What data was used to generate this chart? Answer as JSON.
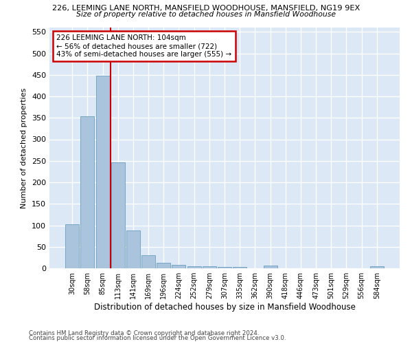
{
  "title1": "226, LEEMING LANE NORTH, MANSFIELD WOODHOUSE, MANSFIELD, NG19 9EX",
  "title2": "Size of property relative to detached houses in Mansfield Woodhouse",
  "xlabel": "Distribution of detached houses by size in Mansfield Woodhouse",
  "ylabel": "Number of detached properties",
  "footer1": "Contains HM Land Registry data © Crown copyright and database right 2024.",
  "footer2": "Contains public sector information licensed under the Open Government Licence v3.0.",
  "categories": [
    "30sqm",
    "58sqm",
    "85sqm",
    "113sqm",
    "141sqm",
    "169sqm",
    "196sqm",
    "224sqm",
    "252sqm",
    "279sqm",
    "307sqm",
    "335sqm",
    "362sqm",
    "390sqm",
    "418sqm",
    "446sqm",
    "473sqm",
    "501sqm",
    "529sqm",
    "556sqm",
    "584sqm"
  ],
  "values": [
    103,
    353,
    448,
    246,
    88,
    30,
    13,
    8,
    5,
    5,
    4,
    4,
    0,
    6,
    0,
    0,
    0,
    0,
    0,
    0,
    5
  ],
  "bar_color": "#aac4de",
  "bar_edge_color": "#6a9fc0",
  "bg_color": "#dce8f5",
  "grid_color": "#ffffff",
  "annotation_text": "226 LEEMING LANE NORTH: 104sqm\n← 56% of detached houses are smaller (722)\n43% of semi-detached houses are larger (555) →",
  "annotation_box_color": "#ffffff",
  "annotation_box_edge": "#cc0000",
  "vline_color": "#cc0000",
  "ylim": [
    0,
    560
  ],
  "yticks": [
    0,
    50,
    100,
    150,
    200,
    250,
    300,
    350,
    400,
    450,
    500,
    550
  ],
  "fig_bg": "#ffffff"
}
